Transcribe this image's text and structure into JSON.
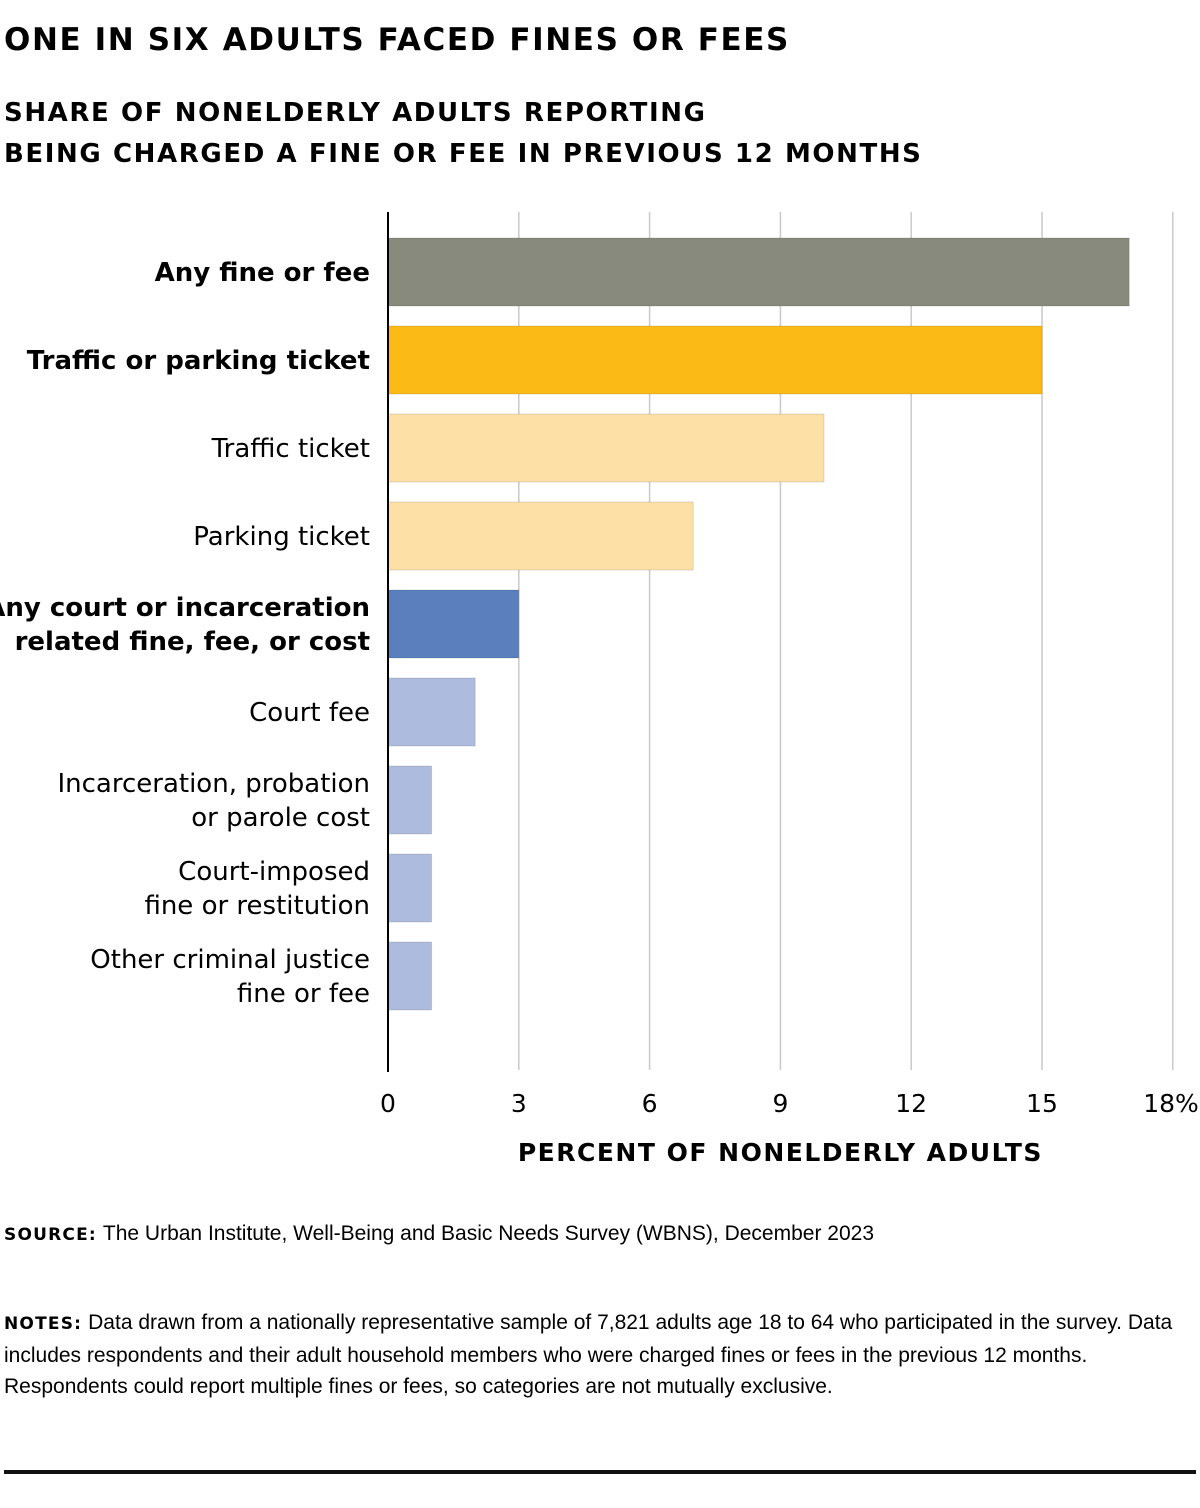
{
  "title": "ONE IN SIX ADULTS FACED FINES OR FEES",
  "subtitle_lines": [
    "SHARE OF NONELDERLY ADULTS REPORTING",
    "BEING CHARGED A FINE OR FEE IN PREVIOUS 12 MONTHS"
  ],
  "source": {
    "label": "SOURCE:",
    "text": "The Urban Institute, Well-Being and Basic Needs Survey (WBNS), December 2023"
  },
  "notes": {
    "label": "NOTES:",
    "text": "Data drawn from a nationally representative sample of 7,821 adults age 18 to 64 who participated in the survey. Data includes respondents and their adult household members who were charged fines or fees in the previous 12 months. Respondents could report multiple fines or fees, so categories are not mutually exclusive."
  },
  "chart_data": {
    "type": "bar",
    "orientation": "horizontal",
    "title": "ONE IN SIX ADULTS FACED FINES OR FEES",
    "subtitle": "SHARE OF NONELDERLY ADULTS REPORTING BEING CHARGED A FINE OR FEE IN PREVIOUS 12 MONTHS",
    "xlabel": "PERCENT OF NONELDERLY ADULTS",
    "ylabel": "",
    "xlim": [
      0,
      18
    ],
    "xticks": [
      0,
      3,
      6,
      9,
      12,
      15,
      18
    ],
    "xtick_labels": [
      "0",
      "3",
      "6",
      "9",
      "12",
      "15",
      "18%"
    ],
    "grid": true,
    "categories": [
      {
        "lines": [
          "Any fine or fee"
        ],
        "bold": true
      },
      {
        "lines": [
          "Traffic or parking ticket"
        ],
        "bold": true
      },
      {
        "lines": [
          "Traffic ticket"
        ],
        "bold": false
      },
      {
        "lines": [
          "Parking ticket"
        ],
        "bold": false
      },
      {
        "lines": [
          "Any court or incarceration",
          "related fine, fee, or cost"
        ],
        "bold": true
      },
      {
        "lines": [
          "Court fee"
        ],
        "bold": false
      },
      {
        "lines": [
          "Incarceration, probation",
          "or parole cost"
        ],
        "bold": false
      },
      {
        "lines": [
          "Court-imposed",
          "fine or restitution"
        ],
        "bold": false
      },
      {
        "lines": [
          "Other criminal justice",
          "fine or fee"
        ],
        "bold": false
      }
    ],
    "values": [
      17,
      15,
      10,
      7,
      3,
      2,
      1,
      1,
      1
    ],
    "colors": [
      "#878a7c",
      "#fbba16",
      "#fde0a6",
      "#fde0a6",
      "#5b7fbd",
      "#adbbdf",
      "#adbbdf",
      "#adbbdf",
      "#adbbdf"
    ],
    "gridline_color": "#c9c9c9",
    "axis_color": "#000000"
  }
}
